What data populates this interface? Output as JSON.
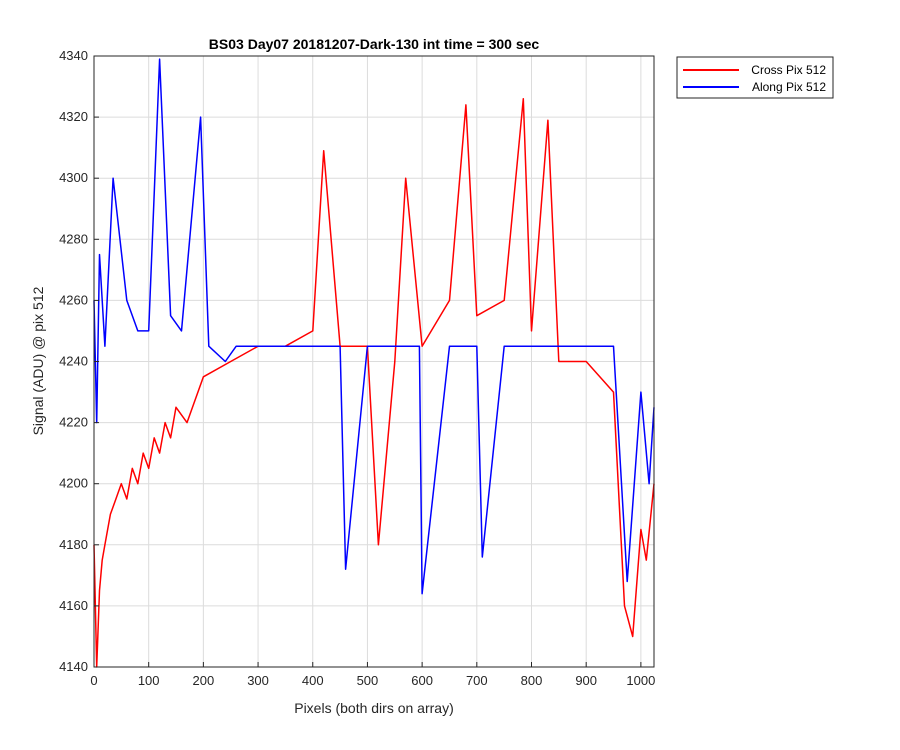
{
  "chart_data": {
    "type": "line",
    "title": "BS03 Day07 20181207-Dark-130 int time = 300 sec",
    "xlabel": "Pixels (both dirs on array)",
    "ylabel": "Signal (ADU) @ pix 512",
    "xlim": [
      0,
      1024
    ],
    "ylim": [
      4140,
      4340
    ],
    "xticks": [
      0,
      100,
      200,
      300,
      400,
      500,
      600,
      700,
      800,
      900,
      1000
    ],
    "yticks": [
      4140,
      4160,
      4180,
      4200,
      4220,
      4240,
      4260,
      4280,
      4300,
      4320,
      4340
    ],
    "grid": true,
    "legend_position": "outside-top-right",
    "series": [
      {
        "name": "Cross Pix 512",
        "color": "#ff0000",
        "x": [
          0,
          5,
          10,
          15,
          20,
          30,
          40,
          50,
          60,
          70,
          80,
          90,
          100,
          110,
          120,
          130,
          140,
          150,
          170,
          200,
          250,
          300,
          350,
          400,
          420,
          450,
          500,
          520,
          550,
          570,
          600,
          650,
          680,
          700,
          750,
          785,
          800,
          830,
          850,
          900,
          950,
          970,
          985,
          1000,
          1010,
          1024
        ],
        "values": [
          4180,
          4140,
          4165,
          4175,
          4180,
          4190,
          4195,
          4200,
          4195,
          4205,
          4200,
          4210,
          4205,
          4215,
          4210,
          4220,
          4215,
          4225,
          4220,
          4235,
          4240,
          4245,
          4245,
          4250,
          4309,
          4245,
          4245,
          4180,
          4240,
          4300,
          4245,
          4260,
          4324,
          4255,
          4260,
          4326,
          4250,
          4319,
          4240,
          4240,
          4230,
          4160,
          4150,
          4185,
          4175,
          4200
        ]
      },
      {
        "name": "Along Pix 512",
        "color": "#0000ff",
        "x": [
          0,
          5,
          10,
          20,
          35,
          60,
          80,
          100,
          120,
          140,
          160,
          195,
          210,
          240,
          260,
          300,
          350,
          400,
          450,
          460,
          500,
          550,
          595,
          600,
          650,
          700,
          710,
          750,
          800,
          850,
          900,
          950,
          975,
          1000,
          1015,
          1024
        ],
        "values": [
          4260,
          4220,
          4275,
          4245,
          4300,
          4260,
          4250,
          4250,
          4339,
          4255,
          4250,
          4320,
          4245,
          4240,
          4245,
          4245,
          4245,
          4245,
          4245,
          4172,
          4245,
          4245,
          4245,
          4164,
          4245,
          4245,
          4176,
          4245,
          4245,
          4245,
          4245,
          4245,
          4168,
          4230,
          4200,
          4225
        ]
      }
    ]
  }
}
